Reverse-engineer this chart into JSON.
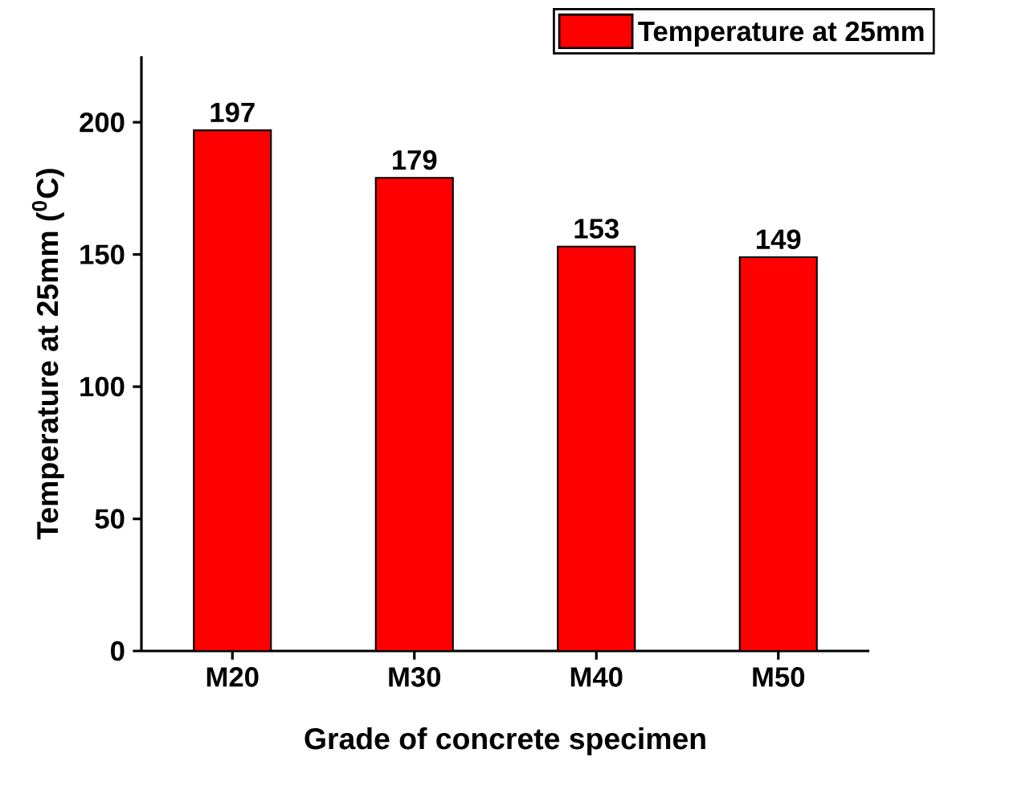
{
  "chart_data": {
    "type": "bar",
    "xlabel": "Grade of concrete specimen",
    "ylabel": "Temperature at 25mm ($^{0}$C)",
    "categories": [
      "M20",
      "M30",
      "M40",
      "M50"
    ],
    "series": [
      {
        "name": "Temperature at 25mm",
        "color": "#ff0000",
        "values": [
          197,
          179,
          153,
          149
        ]
      }
    ],
    "ylim": [
      0,
      225
    ],
    "yticks": [
      0,
      50,
      100,
      150,
      200
    ],
    "data_labels": true,
    "legend": "top right",
    "grid": false
  }
}
